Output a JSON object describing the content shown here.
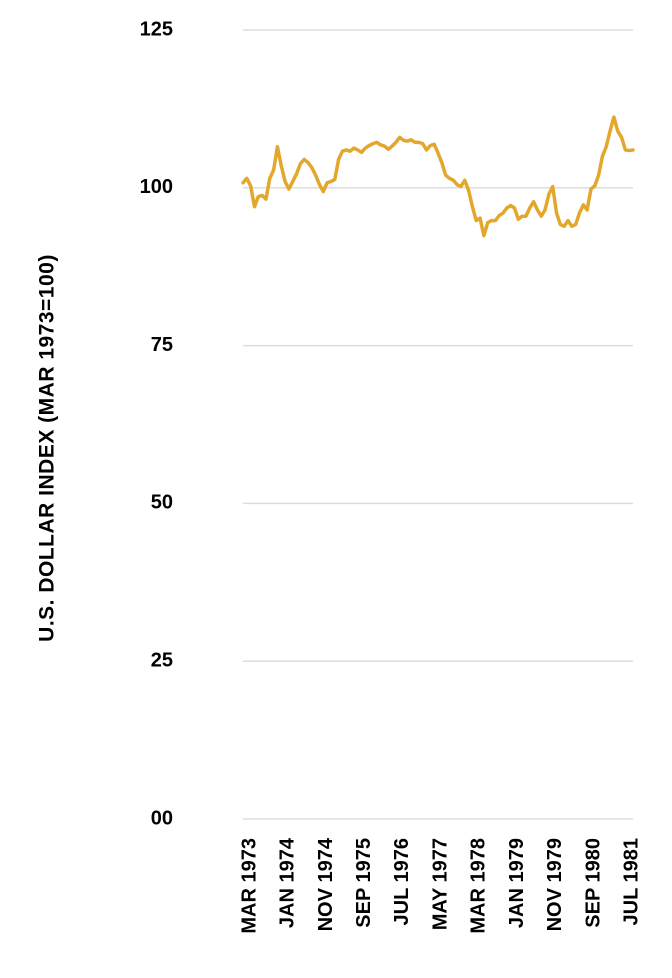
{
  "chart_data": {
    "type": "line",
    "title": "",
    "xlabel": "",
    "ylabel": "U.S. DOLLAR INDEX (MAR 1973=100)",
    "ylim": [
      0,
      125
    ],
    "y_ticks": [
      {
        "value": 125,
        "label": "125"
      },
      {
        "value": 100,
        "label": "100"
      },
      {
        "value": 75,
        "label": "75"
      },
      {
        "value": 50,
        "label": "50"
      },
      {
        "value": 25,
        "label": "25"
      },
      {
        "value": 0,
        "label": "00"
      }
    ],
    "x_ticks": [
      {
        "date": "1973-03",
        "label": "MAR 1973"
      },
      {
        "date": "1974-01",
        "label": "JAN 1974"
      },
      {
        "date": "1974-11",
        "label": "NOV 1974"
      },
      {
        "date": "1975-09",
        "label": "SEP 1975"
      },
      {
        "date": "1976-07",
        "label": "JUL 1976"
      },
      {
        "date": "1977-05",
        "label": "MAY 1977"
      },
      {
        "date": "1978-03",
        "label": "MAR 1978"
      },
      {
        "date": "1979-01",
        "label": "JAN 1979"
      },
      {
        "date": "1979-11",
        "label": "NOV 1979"
      },
      {
        "date": "1980-09",
        "label": "SEP 1980"
      },
      {
        "date": "1981-07",
        "label": "JUL 1981"
      }
    ],
    "grid": true,
    "legend": "none",
    "series": [
      {
        "color": "#e3a82b",
        "x": [
          "1973-03",
          "1973-04",
          "1973-05",
          "1973-06",
          "1973-07",
          "1973-08",
          "1973-09",
          "1973-10",
          "1973-11",
          "1973-12",
          "1974-01",
          "1974-02",
          "1974-03",
          "1974-04",
          "1974-05",
          "1974-06",
          "1974-07",
          "1974-08",
          "1974-09",
          "1974-10",
          "1974-11",
          "1974-12",
          "1975-01",
          "1975-02",
          "1975-03",
          "1975-04",
          "1975-05",
          "1975-06",
          "1975-07",
          "1975-08",
          "1975-09",
          "1975-10",
          "1975-11",
          "1975-12",
          "1976-01",
          "1976-02",
          "1976-03",
          "1976-04",
          "1976-05",
          "1976-06",
          "1976-07",
          "1976-08",
          "1976-09",
          "1976-10",
          "1976-11",
          "1976-12",
          "1977-01",
          "1977-02",
          "1977-03",
          "1977-04",
          "1977-05",
          "1977-06",
          "1977-07",
          "1977-08",
          "1977-09",
          "1977-10",
          "1977-11",
          "1977-12",
          "1978-01",
          "1978-02",
          "1978-03",
          "1978-04",
          "1978-05",
          "1978-06",
          "1978-07",
          "1978-08",
          "1978-09",
          "1978-10",
          "1978-11",
          "1978-12",
          "1979-01",
          "1979-02",
          "1979-03",
          "1979-04",
          "1979-05",
          "1979-06",
          "1979-07",
          "1979-08",
          "1979-09",
          "1979-10",
          "1979-11",
          "1979-12",
          "1980-01",
          "1980-02",
          "1980-03",
          "1980-04",
          "1980-05",
          "1980-06",
          "1980-07",
          "1980-08",
          "1980-09",
          "1980-10",
          "1980-11",
          "1980-12",
          "1981-01",
          "1981-02",
          "1981-03",
          "1981-04",
          "1981-05",
          "1981-06",
          "1981-07",
          "1981-08",
          "1981-09"
        ],
        "y": [
          100.8,
          101.5,
          100.3,
          97.0,
          98.6,
          98.8,
          98.2,
          101.5,
          102.8,
          106.5,
          103.5,
          101.0,
          99.8,
          101.0,
          102.2,
          103.8,
          104.5,
          104.0,
          103.2,
          102.0,
          100.5,
          99.4,
          100.8,
          101.0,
          101.3,
          104.5,
          105.8,
          106.0,
          105.8,
          106.3,
          106.0,
          105.6,
          106.3,
          106.7,
          107.0,
          107.2,
          106.8,
          106.6,
          106.1,
          106.6,
          107.2,
          108.0,
          107.5,
          107.4,
          107.6,
          107.2,
          107.2,
          107.0,
          106.0,
          106.7,
          106.9,
          105.5,
          104.0,
          102.0,
          101.5,
          101.2,
          100.5,
          100.2,
          101.2,
          99.6,
          97.0,
          94.8,
          95.2,
          92.4,
          94.5,
          94.8,
          94.8,
          95.6,
          96.0,
          96.8,
          97.2,
          96.8,
          95.0,
          95.5,
          95.5,
          96.8,
          97.8,
          96.5,
          95.5,
          96.5,
          99.0,
          100.2,
          96.0,
          94.2,
          93.9,
          94.8,
          93.9,
          94.2,
          96.0,
          97.3,
          96.5,
          99.8,
          100.3,
          102.0,
          105.0,
          106.5,
          109.0,
          111.2,
          109.0,
          108.0,
          106.0,
          105.9,
          106.0
        ]
      }
    ]
  }
}
